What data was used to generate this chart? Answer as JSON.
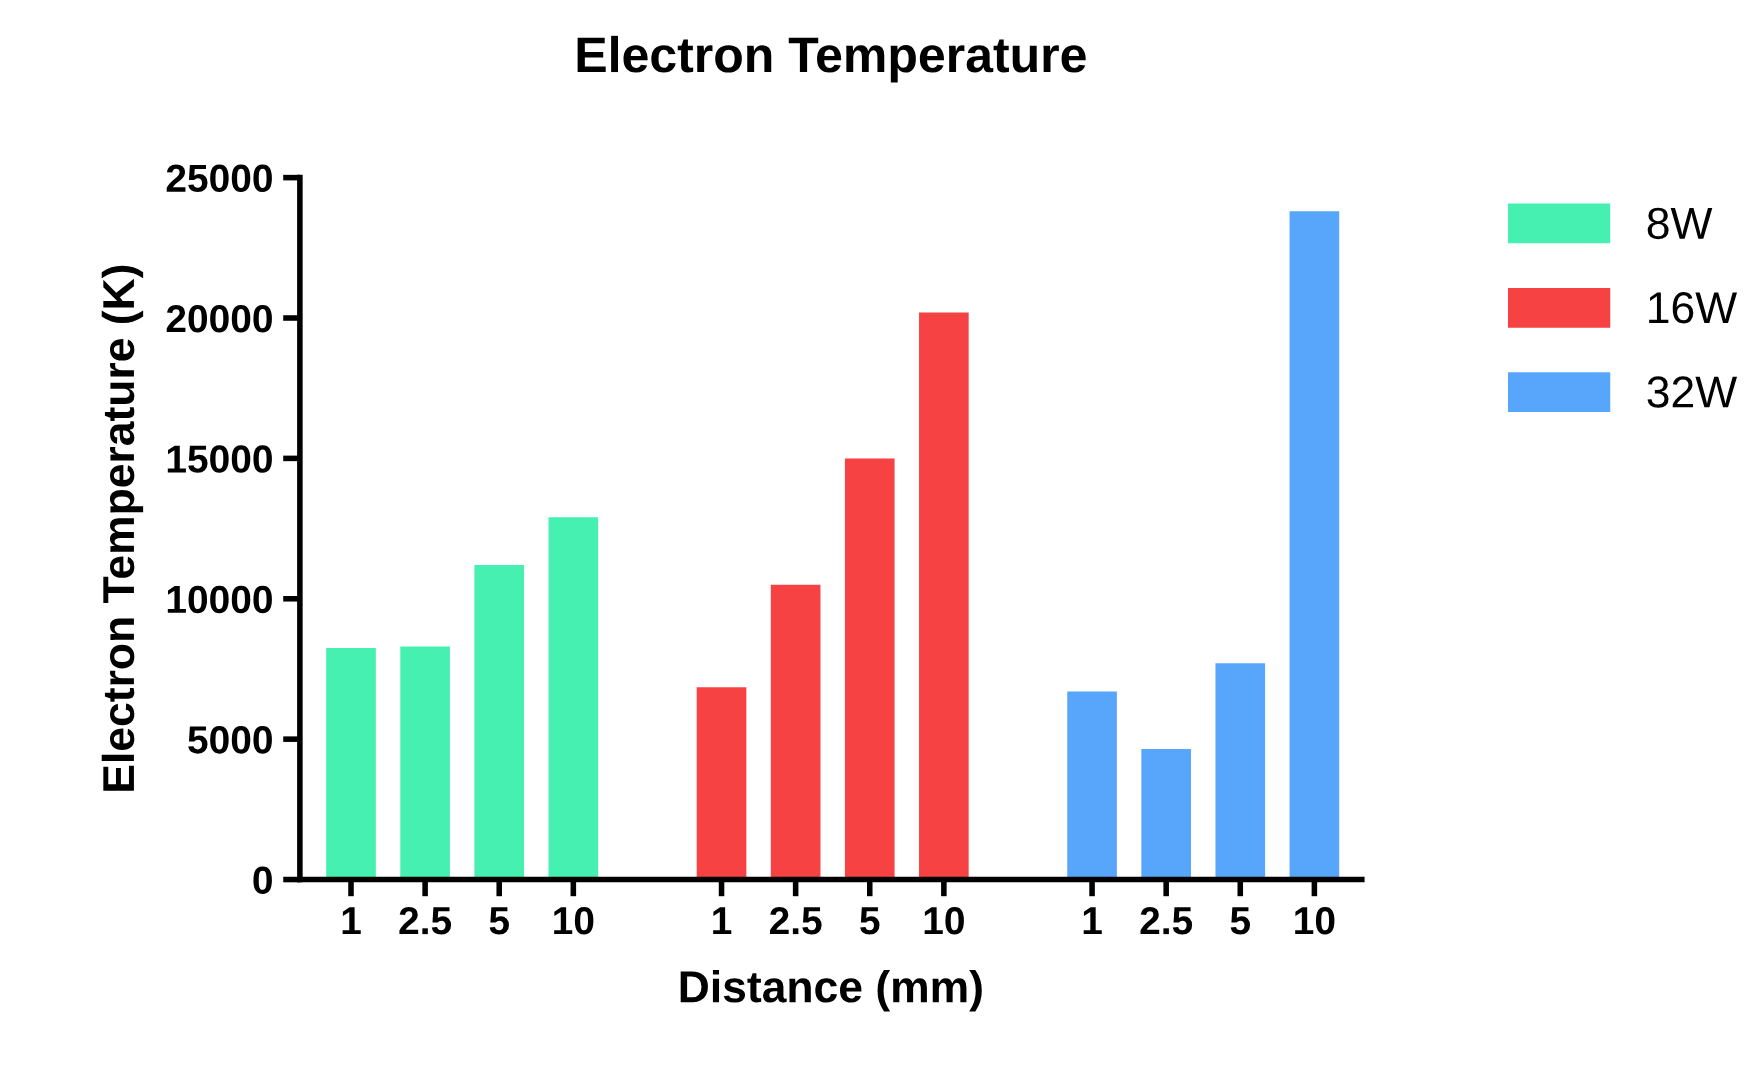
{
  "chart_data": {
    "type": "bar",
    "title": "Electron Temperature",
    "xlabel": "Distance (mm)",
    "ylabel": "Electron Temperature (K)",
    "categories": [
      "1",
      "2.5",
      "5",
      "10",
      null,
      "1",
      "2.5",
      "5",
      "10",
      null,
      "1",
      "2.5",
      "5",
      "10"
    ],
    "series": [
      {
        "name": "8W",
        "color": "#45f0b0",
        "values": [
          8250,
          8300,
          11200,
          12900,
          null,
          null,
          null,
          null,
          null,
          null,
          null,
          null,
          null,
          null
        ]
      },
      {
        "name": "16W",
        "color": "#f74244",
        "values": [
          null,
          null,
          null,
          null,
          null,
          6850,
          10500,
          15000,
          20200,
          null,
          null,
          null,
          null,
          null
        ]
      },
      {
        "name": "32W",
        "color": "#58a6fb",
        "values": [
          null,
          null,
          null,
          null,
          null,
          null,
          null,
          null,
          null,
          null,
          6700,
          4650,
          7700,
          23800
        ]
      }
    ],
    "ylim": [
      0,
      25000
    ],
    "yticks": [
      0,
      5000,
      10000,
      15000,
      20000,
      25000
    ],
    "grid": false,
    "legend": "top right"
  }
}
